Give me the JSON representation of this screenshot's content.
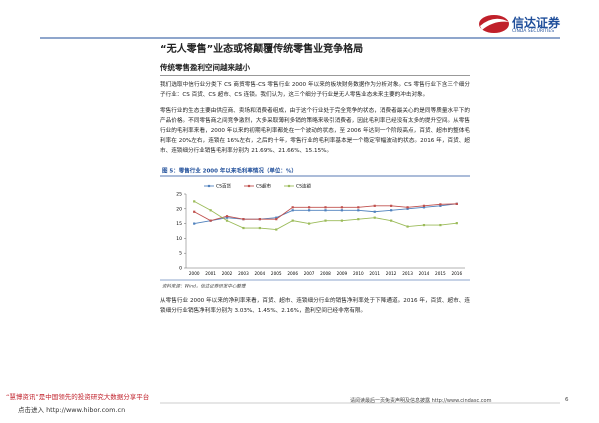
{
  "header": {
    "logo_cn": "信达证券",
    "logo_en": "CINDA SECURITIES"
  },
  "title": "“无人零售”业态或将颠覆传统零售业竞争格局",
  "section_heading": "传统零售盈利空间越来越小",
  "paragraphs": [
    "我们选取中信行业分类下 CS 商贸零售-CS 零售行业 2000 年以来的板块财务数据作为分析对象。CS 零售行业下含三个细分子行业：CS 百货、CS 超市、CS 连锁。我们认为，这三个细分子行业是无人零售业态未来主要的冲击对象。",
    "零售行业的生态主要由供应商、卖场和消费者组成，由于这个行业处于完全竞争的状态，消费者最关心的是同等质量水平下的产品价格。不同零售商之间竞争激烈，大多采取薄利多销的策略来吸引消费者，因此毛利率已经没有太多的提升空间。从零售行业的毛利率来看，2000 年以来的初期毛利率都处在一个波动的状态，至 2006 年达到一个阶段高点，百货、超市的整体毛利率在 20%左右，连锁在 16%左右，之后的十年，零售行业的毛利率基本是一个稳定窄幅波动的状态。2016 年，百货、超市、连锁细分行业销售毛利率分别为 21.69%、21.66%、15.15%。",
    "从零售行业 2000 年以来的净利率来看，百货、超市、连锁细分行业的销售净利率处于下降通道。2016 年，百货、超市、连锁细分行业销售净利率分别为 3.03%、1.45%、2.16%，盈利空间已经非常有限。"
  ],
  "chart_data": {
    "type": "line",
    "title": "图 5：零售行业 2000 年以来毛利率情况（单位：%）",
    "categories": [
      "2000",
      "2001",
      "2002",
      "2003",
      "2004",
      "2005",
      "2006",
      "2007",
      "2008",
      "2009",
      "2010",
      "2011",
      "2012",
      "2013",
      "2014",
      "2015",
      "2016"
    ],
    "series": [
      {
        "name": "CS百货",
        "color": "#4f81bd",
        "values": [
          15,
          16,
          17,
          16.5,
          16.5,
          17,
          19.5,
          19.5,
          19.5,
          19.5,
          19.5,
          19,
          19.5,
          20,
          20.5,
          21,
          21.69
        ]
      },
      {
        "name": "CS超市",
        "color": "#c0504d",
        "values": [
          19,
          16,
          17.5,
          16.5,
          16.5,
          16.5,
          20.5,
          20.5,
          20.5,
          20.5,
          20.5,
          21,
          21,
          20.5,
          21,
          21.5,
          21.66
        ]
      },
      {
        "name": "CS连锁",
        "color": "#9bbb59",
        "values": [
          22.5,
          19.5,
          16,
          13.5,
          13.5,
          13,
          16,
          15,
          16,
          16,
          16.5,
          17,
          16,
          14,
          14.5,
          14.5,
          15.15
        ]
      }
    ],
    "ylim": [
      0,
      25
    ],
    "yticks": [
      0,
      5,
      10,
      15,
      20,
      25
    ],
    "grid": false,
    "source": "资料来源：Wind，信达证券研发中心整理"
  },
  "footer": {
    "disclaimer": "请阅读最后一页免责声明及信息披露 http://www.cindasc.com",
    "page": 6
  },
  "watermark": {
    "line1": "“慧博资讯”是中国领先的投资研究大数据分享平台",
    "line2": "点击进入 http://www.hibor.com.cn"
  }
}
